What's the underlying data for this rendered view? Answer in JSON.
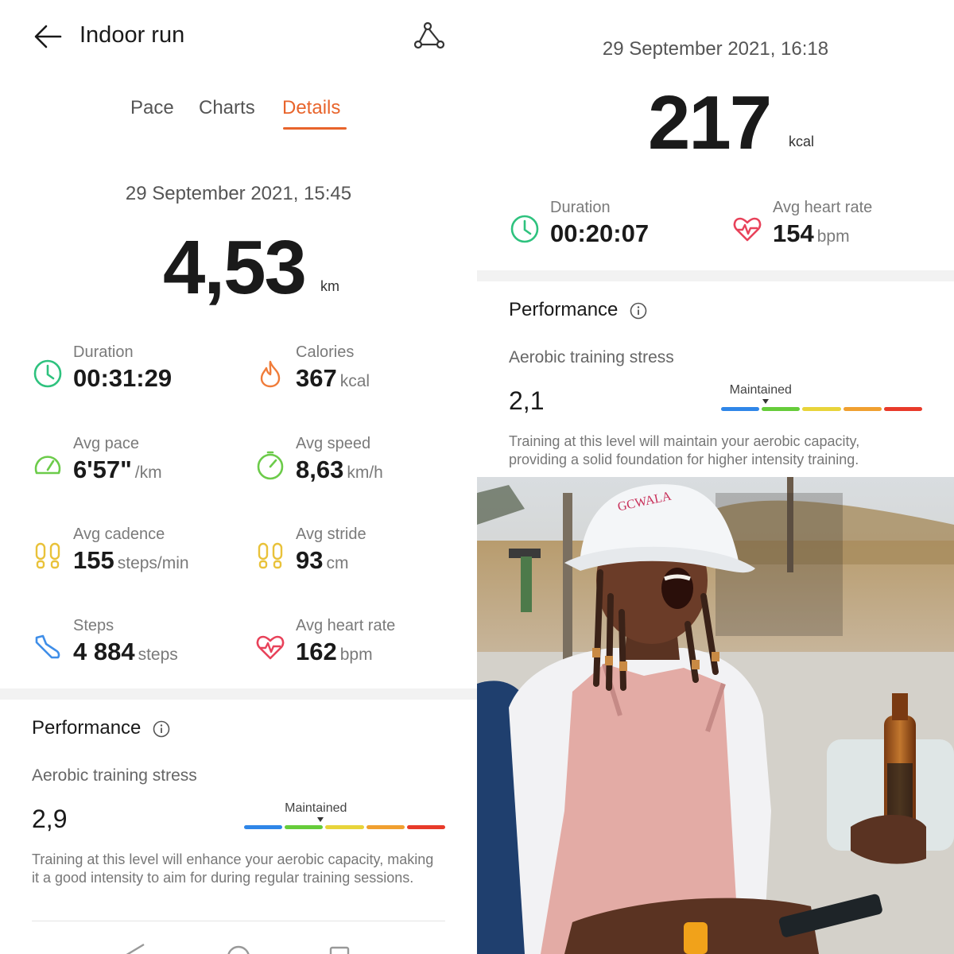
{
  "left": {
    "header": {
      "title": "Indoor run"
    },
    "tabs": [
      {
        "label": "Pace"
      },
      {
        "label": "Charts"
      },
      {
        "label": "Details"
      }
    ],
    "active_tab": "Details",
    "date": "29 September 2021, 15:45",
    "distance": {
      "value": "4,53",
      "unit": "km"
    },
    "stats": [
      {
        "label": "Duration",
        "value": "00:31:29",
        "unit": "",
        "icon": "clock-icon"
      },
      {
        "label": "Calories",
        "value": "367",
        "unit": "kcal",
        "icon": "flame-icon"
      },
      {
        "label": "Avg pace",
        "value": "6'57\"",
        "unit": "/km",
        "icon": "speedometer-icon"
      },
      {
        "label": "Avg speed",
        "value": "8,63",
        "unit": "km/h",
        "icon": "speed-gauge-icon"
      },
      {
        "label": "Avg cadence",
        "value": "155",
        "unit": "steps/min",
        "icon": "footprints-icon"
      },
      {
        "label": "Avg stride",
        "value": "93",
        "unit": "cm",
        "icon": "footprints-icon"
      },
      {
        "label": "Steps",
        "value": "4 884",
        "unit": "steps",
        "icon": "shoe-icon"
      },
      {
        "label": "Avg heart rate",
        "value": "162",
        "unit": "bpm",
        "icon": "heart-rate-icon"
      }
    ],
    "performance": {
      "title": "Performance",
      "subtitle": "Aerobic training stress",
      "value": "2,9",
      "level_label": "Maintained",
      "level_position": 0.38,
      "description": "Training at this level will enhance your aerobic capacity, making it a good intensity to aim for during regular training sessions."
    }
  },
  "right": {
    "date": "29 September 2021, 16:18",
    "calories": {
      "value": "217",
      "unit": "kcal"
    },
    "stats": [
      {
        "label": "Duration",
        "value": "00:20:07",
        "unit": "",
        "icon": "clock-icon"
      },
      {
        "label": "Avg heart rate",
        "value": "154",
        "unit": "bpm",
        "icon": "heart-rate-icon"
      }
    ],
    "performance": {
      "title": "Performance",
      "subtitle": "Aerobic training stress",
      "value": "2,1",
      "level_label": "Maintained",
      "level_position": 0.22,
      "description_line1": "Training at this level will maintain your aerobic capacity,",
      "description_line2": "providing a solid foundation for higher intensity training."
    }
  },
  "photo": {
    "hat_text": "GCWALA"
  },
  "colors": {
    "accent": "#e8642b",
    "clock": "#2ec27e",
    "flame": "#f07c3a",
    "pace": "#6ccb4a",
    "footprints": "#e9c23a",
    "shoe": "#3f8ee8",
    "heart": "#e8425a",
    "scale": [
      "#2f86e8",
      "#66cc3a",
      "#e8d43a",
      "#f0a030",
      "#e83a2a"
    ]
  }
}
